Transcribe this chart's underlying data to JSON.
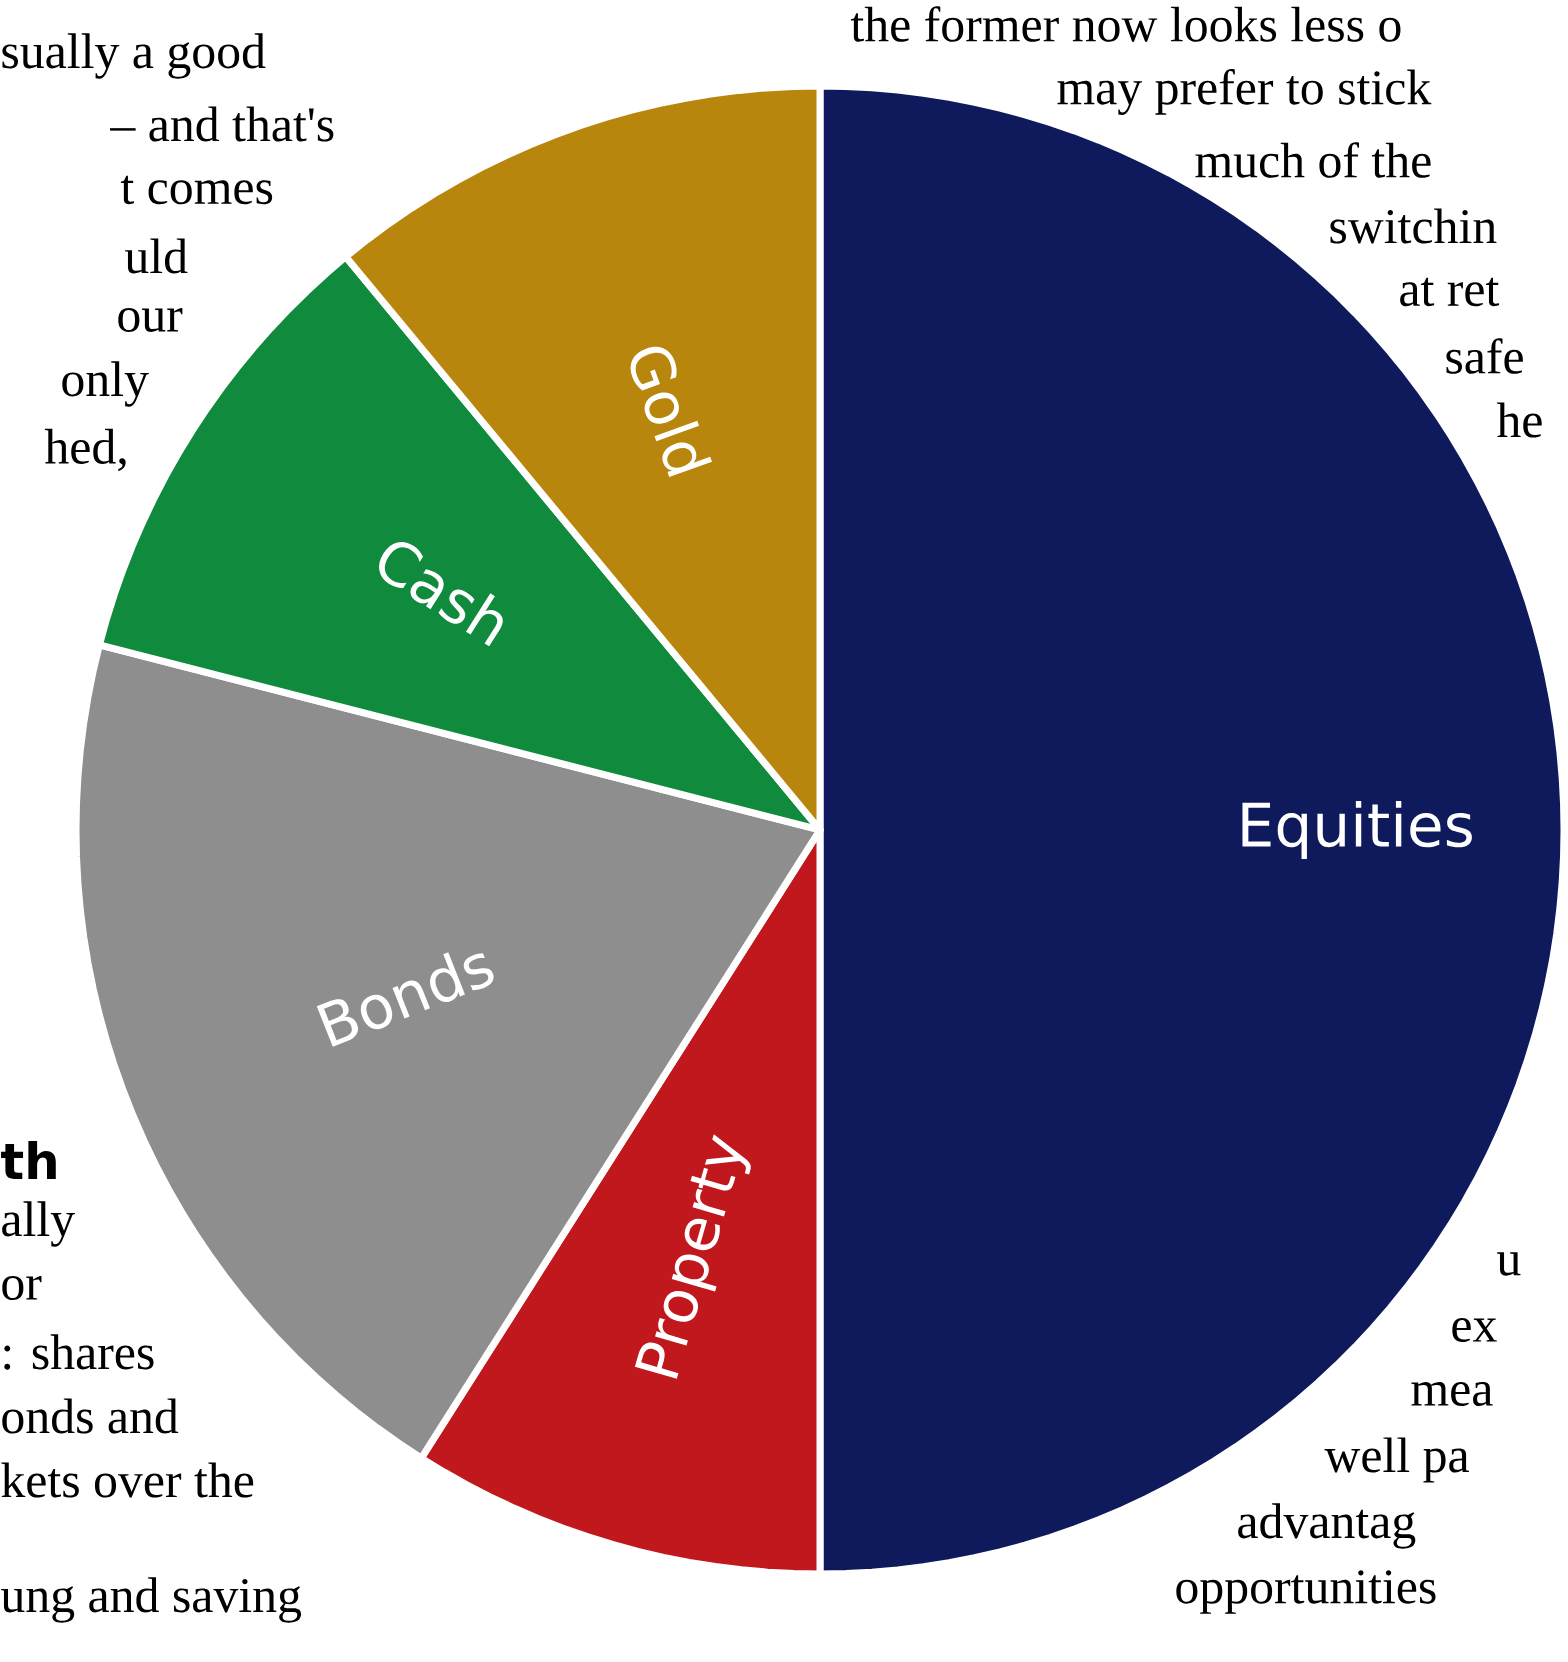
{
  "chart_data": {
    "type": "pie",
    "categories": [
      "Equities",
      "Property",
      "Bonds",
      "Cash",
      "Gold"
    ],
    "values": [
      50,
      9,
      20,
      10,
      11
    ],
    "colors": [
      "#0f1a5c",
      "#c0181c",
      "#8e8e8e",
      "#108a3c",
      "#b8860d"
    ],
    "annotations": [
      "sually a good",
      "– and that's",
      "t comes",
      "uld",
      "our",
      "only",
      "hed,",
      "th",
      "ally",
      "or",
      ": shares",
      "onds and",
      "kets over the",
      "ung and saving",
      "the former now looks less o",
      "may prefer to stick",
      "much of the",
      "switchin",
      "at ret",
      "safe",
      "he",
      "u",
      "ex",
      "mea",
      "well pa",
      "advantag",
      "opportunities"
    ]
  }
}
